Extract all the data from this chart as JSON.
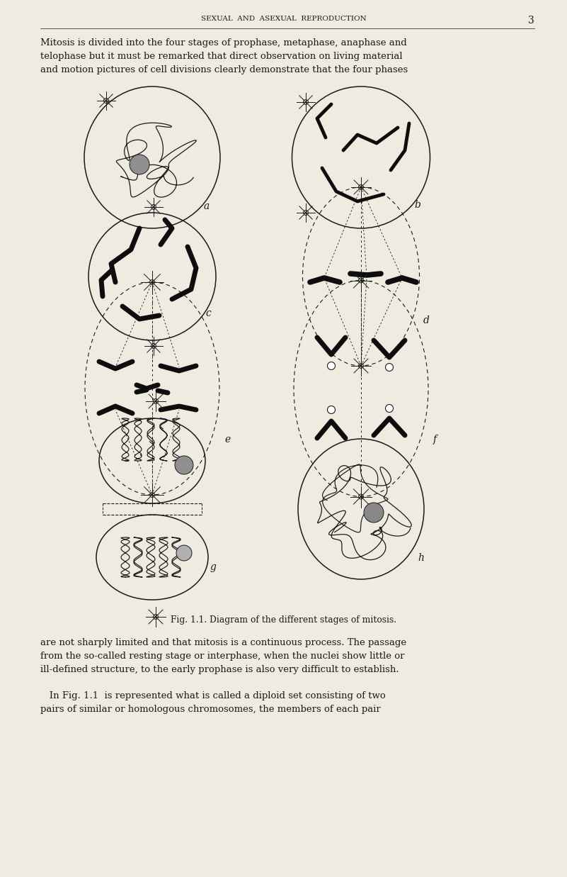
{
  "bg_color": "#f0ebe0",
  "text_color": "#1a1a1a",
  "page_width": 8.01,
  "page_height": 12.37,
  "header": "SEXUAL  AND  ASEXUAL  REPRODUCTION",
  "page_num": "3",
  "para1_line1": "Mitosis is divided into the four stages of prophase, metaphase, anaphase and",
  "para1_line2": "telophase but it must be remarked that direct observation on living material",
  "para1_line3": "and motion pictures of cell divisions clearly demonstrate that the four phases",
  "caption": "Fig. 1.1. Diagram of the different stages of mitosis.",
  "para2_line1": "are not sharply limited and that mitosis is a continuous process. The passage",
  "para2_line2": "from the so-called resting stage or interphase, when the nuclei show little or",
  "para2_line3": "ill-defined structure, to the early prophase is also very difficult to establish.",
  "para3_line1": "   In Fig. 1.1  is represented what is called a diploid set consisting of two",
  "para3_line2": "pairs of similar or homologous chromosomes, the members of each pair",
  "line_color": "#1a1a1a",
  "dark_chrom": "#0d0d0d"
}
